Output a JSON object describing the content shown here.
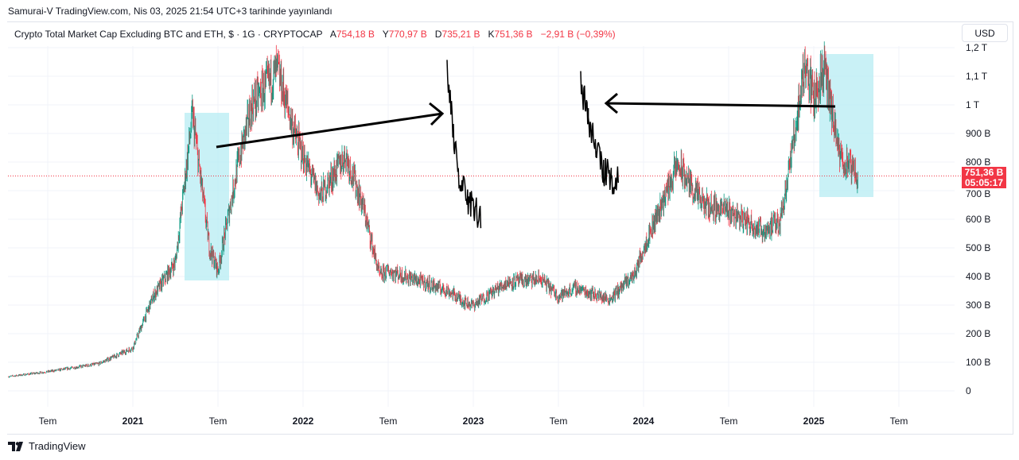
{
  "published": "Samurai-V TradingView.com, Nis 03, 2025 21:54 UTC+3 tarihinde yayınlandı",
  "legend": {
    "title": "Crypto Total Market Cap Excluding BTC and ETH, $ · 1G · CRYPTOCAP",
    "o_label": "A",
    "o": "754,18 B",
    "h_label": "Y",
    "h": "770,97 B",
    "l_label": "D",
    "l": "735,21 B",
    "c_label": "K",
    "c": "751,36 B",
    "change": "−2,91 B (−0,39%)"
  },
  "currency_button": "USD",
  "last_price": {
    "value": "751,36 B",
    "countdown": "05:05:17"
  },
  "brand": "TradingView",
  "colors": {
    "up": "#089981",
    "down": "#f23645",
    "highlight": "#b2ebf2"
  },
  "chart_data": {
    "type": "candlestick",
    "title": "Crypto Total Market Cap Excluding BTC and ETH",
    "ylabel": "USD",
    "ylim": [
      -20,
      1220
    ],
    "y_ticks": [
      {
        "v": 0,
        "label": "0"
      },
      {
        "v": 100,
        "label": "100 B"
      },
      {
        "v": 200,
        "label": "200 B"
      },
      {
        "v": 300,
        "label": "300 B"
      },
      {
        "v": 400,
        "label": "400 B"
      },
      {
        "v": 500,
        "label": "500 B"
      },
      {
        "v": 600,
        "label": "600 B"
      },
      {
        "v": 700,
        "label": "700 B"
      },
      {
        "v": 800,
        "label": "800 B"
      },
      {
        "v": 900,
        "label": "900 B"
      },
      {
        "v": 1000,
        "label": "1 T"
      },
      {
        "v": 1100,
        "label": "1,1 T"
      },
      {
        "v": 1200,
        "label": "1,2 T"
      }
    ],
    "x_ticks": [
      {
        "t": 2020.5,
        "label": "Tem"
      },
      {
        "t": 2021,
        "label": "2021"
      },
      {
        "t": 2021.5,
        "label": "Tem"
      },
      {
        "t": 2022,
        "label": "2022"
      },
      {
        "t": 2022.5,
        "label": "Tem"
      },
      {
        "t": 2023,
        "label": "2023"
      },
      {
        "t": 2023.5,
        "label": "Tem"
      },
      {
        "t": 2024,
        "label": "2024"
      },
      {
        "t": 2024.5,
        "label": "Tem"
      },
      {
        "t": 2025,
        "label": "2025"
      },
      {
        "t": 2025.5,
        "label": "Tem"
      }
    ],
    "xlim": [
      2020.27,
      2025.85
    ],
    "series_approx_billions": [
      [
        2020.27,
        50
      ],
      [
        2020.5,
        67
      ],
      [
        2020.8,
        95
      ],
      [
        2021.0,
        150
      ],
      [
        2021.12,
        330
      ],
      [
        2021.25,
        450
      ],
      [
        2021.35,
        965
      ],
      [
        2021.45,
        500
      ],
      [
        2021.5,
        420
      ],
      [
        2021.62,
        800
      ],
      [
        2021.7,
        1000
      ],
      [
        2021.85,
        1120
      ],
      [
        2021.95,
        900
      ],
      [
        2022.0,
        820
      ],
      [
        2022.1,
        680
      ],
      [
        2022.25,
        825
      ],
      [
        2022.35,
        650
      ],
      [
        2022.45,
        400
      ],
      [
        2022.5,
        420
      ],
      [
        2022.7,
        380
      ],
      [
        2022.85,
        350
      ],
      [
        2022.95,
        310
      ],
      [
        2023.0,
        300
      ],
      [
        2023.2,
        380
      ],
      [
        2023.4,
        390
      ],
      [
        2023.5,
        330
      ],
      [
        2023.6,
        360
      ],
      [
        2023.8,
        320
      ],
      [
        2023.95,
        410
      ],
      [
        2024.0,
        500
      ],
      [
        2024.2,
        790
      ],
      [
        2024.35,
        650
      ],
      [
        2024.5,
        630
      ],
      [
        2024.7,
        560
      ],
      [
        2024.8,
        590
      ],
      [
        2024.87,
        830
      ],
      [
        2024.95,
        1150
      ],
      [
        2025.0,
        1020
      ],
      [
        2025.06,
        1130
      ],
      [
        2025.15,
        820
      ],
      [
        2025.26,
        751
      ]
    ],
    "last_close": 751.36
  }
}
